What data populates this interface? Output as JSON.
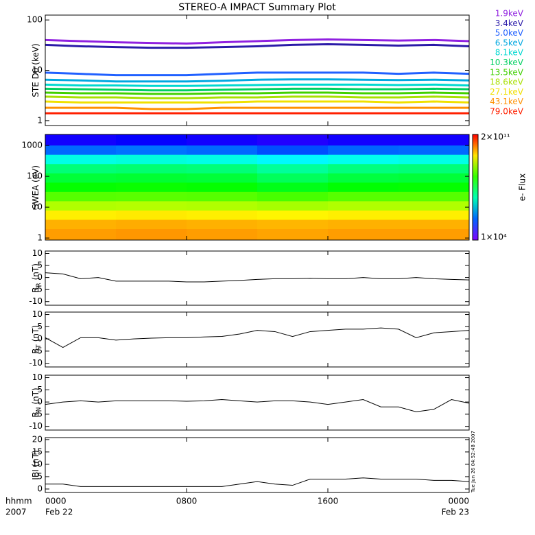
{
  "title": "STEREO-A IMPACT Summary Plot",
  "chart_data": [
    {
      "type": "line",
      "log": true,
      "ylabel": "STE D0 (keV)",
      "x": [
        0,
        2,
        4,
        6,
        8,
        10,
        12,
        14,
        16,
        18,
        20,
        22,
        24
      ],
      "xlim": [
        0,
        24
      ],
      "ylim": [
        0.8,
        125
      ],
      "yticks": [
        1,
        10,
        100
      ],
      "series": [
        {
          "name": "1.9keV",
          "color": "#9020e0",
          "values": [
            40,
            38,
            36,
            35,
            34,
            36,
            38,
            40,
            41,
            40,
            39,
            40,
            38
          ]
        },
        {
          "name": "3.4keV",
          "color": "#2a1aa8",
          "values": [
            32,
            30,
            29,
            28,
            28,
            29,
            30,
            32,
            33,
            32,
            31,
            32,
            30
          ]
        },
        {
          "name": "5.0keV",
          "color": "#2060ff",
          "values": [
            9,
            8.5,
            8,
            8,
            8,
            8.5,
            9,
            9,
            9,
            9,
            8.5,
            9,
            8.5
          ]
        },
        {
          "name": "6.5keV",
          "color": "#00a8e0",
          "values": [
            6.5,
            6.3,
            6,
            6,
            6,
            6.2,
            6.5,
            6.6,
            6.6,
            6.5,
            6.4,
            6.5,
            6.3
          ]
        },
        {
          "name": "8.1keV",
          "color": "#00d8d0",
          "values": [
            5.2,
            5,
            5,
            4.9,
            4.9,
            5,
            5.1,
            5.2,
            5.2,
            5.2,
            5.1,
            5.2,
            5
          ]
        },
        {
          "name": "10.3keV",
          "color": "#00d060",
          "values": [
            4.3,
            4.2,
            4.1,
            4,
            4,
            4.1,
            4.2,
            4.3,
            4.3,
            4.2,
            4.2,
            4.3,
            4.2
          ]
        },
        {
          "name": "13.5keV",
          "color": "#40d000",
          "values": [
            3.6,
            3.5,
            3.5,
            3.4,
            3.4,
            3.5,
            3.5,
            3.6,
            3.6,
            3.5,
            3.5,
            3.6,
            3.5
          ]
        },
        {
          "name": "18.6keV",
          "color": "#a8e000",
          "values": [
            3,
            2.9,
            2.9,
            2.8,
            2.8,
            2.9,
            2.9,
            3,
            3,
            2.9,
            2.9,
            3,
            2.9
          ]
        },
        {
          "name": "27.1keV",
          "color": "#f0e000",
          "values": [
            2.4,
            2.3,
            2.3,
            2.3,
            2.3,
            2.3,
            2.4,
            2.4,
            2.4,
            2.4,
            2.3,
            2.4,
            2.3
          ]
        },
        {
          "name": "43.1keV",
          "color": "#ff9000",
          "values": [
            1.8,
            1.8,
            1.8,
            1.7,
            1.7,
            1.8,
            1.8,
            1.8,
            1.8,
            1.8,
            1.8,
            1.8,
            1.8
          ]
        },
        {
          "name": "79.0keV",
          "color": "#ff2000",
          "values": [
            1.4,
            1.4,
            1.4,
            1.4,
            1.4,
            1.4,
            1.4,
            1.4,
            1.4,
            1.4,
            1.4,
            1.4,
            1.4
          ]
        }
      ]
    },
    {
      "type": "heatmap",
      "log": true,
      "ylabel": "SWEA (eV)",
      "x_edges": [
        0,
        4,
        8,
        12,
        16,
        20,
        24
      ],
      "xlim": [
        0,
        24
      ],
      "y_edges": [
        0.86,
        2,
        4,
        8,
        16,
        32,
        64,
        128,
        256,
        512,
        1024,
        2280
      ],
      "ylim": [
        0.86,
        2280
      ],
      "yticks": [
        1,
        10,
        100,
        1000
      ],
      "z": [
        [
          20000000000.0,
          22000000000.0,
          20000000000.0,
          18000000000.0,
          20000000000.0,
          20000000000.0
        ],
        [
          15000000000.0,
          16000000000.0,
          15000000000.0,
          14000000000.0,
          15000000000.0,
          15000000000.0
        ],
        [
          6000000000.0,
          6500000000.0,
          6000000000.0,
          5500000000.0,
          6000000000.0,
          6000000000.0
        ],
        [
          1500000000.0,
          1600000000.0,
          1500000000.0,
          1300000000.0,
          1500000000.0,
          1500000000.0
        ],
        [
          400000000.0,
          420000000.0,
          400000000.0,
          320000000.0,
          400000000.0,
          400000000.0
        ],
        [
          120000000.0,
          130000000.0,
          120000000.0,
          80000000.0,
          110000000.0,
          120000000.0
        ],
        [
          50000000.0,
          55000000.0,
          50000000.0,
          30000000.0,
          45000000.0,
          50000000.0
        ],
        [
          20000000.0,
          22000000.0,
          20000000.0,
          12000000.0,
          18000000.0,
          20000000.0
        ],
        [
          4000000.0,
          4500000.0,
          4000000.0,
          2500000.0,
          3500000.0,
          4000000.0
        ],
        [
          300000.0,
          350000.0,
          300000.0,
          200000.0,
          280000.0,
          300000.0
        ],
        [
          50000.0,
          60000.0,
          50000.0,
          40000.0,
          50000.0,
          50000.0
        ]
      ],
      "clim": [
        10000.0,
        200000000000.0
      ],
      "clabel": "e- Flux",
      "cticks": [
        {
          "value": 200000000000.0,
          "label": "2×10¹¹"
        },
        {
          "value": 10000.0,
          "label": "1×10⁴"
        }
      ]
    },
    {
      "type": "line",
      "ylabel": "B",
      "ylabel_sub": "R",
      "ylabel_unit": "(nT)",
      "x": [
        0,
        1,
        2,
        3,
        4,
        5,
        6,
        7,
        8,
        9,
        10,
        11,
        12,
        13,
        14,
        15,
        16,
        17,
        18,
        19,
        20,
        21,
        22,
        23,
        24
      ],
      "xlim": [
        0,
        24
      ],
      "ylim": [
        -11.5,
        11
      ],
      "yticks": [
        -10,
        -5,
        0,
        5,
        10
      ],
      "series": [
        {
          "color": "#000000",
          "values": [
            2,
            1.5,
            -0.5,
            0,
            -1.5,
            -1.5,
            -1.5,
            -1.5,
            -1.8,
            -1.8,
            -1.5,
            -1.2,
            -0.8,
            -0.5,
            -0.5,
            -0.3,
            -0.5,
            -0.5,
            0,
            -0.5,
            -0.5,
            0,
            -0.5,
            -0.8,
            -1
          ]
        }
      ]
    },
    {
      "type": "line",
      "ylabel": "B",
      "ylabel_sub": "T",
      "ylabel_unit": "(nT)",
      "x": [
        0,
        1,
        2,
        3,
        4,
        5,
        6,
        7,
        8,
        9,
        10,
        11,
        12,
        13,
        14,
        15,
        16,
        17,
        18,
        19,
        20,
        21,
        22,
        23,
        24
      ],
      "xlim": [
        0,
        24
      ],
      "ylim": [
        -11.5,
        11
      ],
      "yticks": [
        -10,
        -5,
        0,
        5,
        10
      ],
      "series": [
        {
          "color": "#000000",
          "values": [
            0.5,
            -3.5,
            0.5,
            0.5,
            -0.5,
            0,
            0.3,
            0.5,
            0.5,
            0.8,
            1,
            2,
            3.5,
            3,
            1,
            3,
            3.5,
            4,
            4,
            4.5,
            4,
            0.5,
            2.5,
            3,
            3.5
          ]
        }
      ]
    },
    {
      "type": "line",
      "ylabel": "B",
      "ylabel_sub": "N",
      "ylabel_unit": "(nT)",
      "x": [
        0,
        1,
        2,
        3,
        4,
        5,
        6,
        7,
        8,
        9,
        10,
        11,
        12,
        13,
        14,
        15,
        16,
        17,
        18,
        19,
        20,
        21,
        22,
        23,
        24
      ],
      "xlim": [
        0,
        24
      ],
      "ylim": [
        -11.5,
        11
      ],
      "yticks": [
        -10,
        -5,
        0,
        5,
        10
      ],
      "series": [
        {
          "color": "#000000",
          "values": [
            -1,
            0,
            0.5,
            0,
            0.5,
            0.5,
            0.5,
            0.5,
            0.3,
            0.5,
            1,
            0.5,
            0,
            0.5,
            0.5,
            0,
            -1,
            0,
            1,
            -2,
            -2,
            -4,
            -3,
            1,
            -0.5
          ]
        }
      ]
    },
    {
      "type": "line",
      "ylabel": "IBI (nT)",
      "x": [
        0,
        1,
        2,
        3,
        4,
        5,
        6,
        7,
        8,
        9,
        10,
        11,
        12,
        13,
        14,
        15,
        16,
        17,
        18,
        19,
        20,
        21,
        22,
        23,
        24
      ],
      "xlim": [
        0,
        24
      ],
      "ylim": [
        -1.4,
        20.8
      ],
      "yticks": [
        0,
        5,
        10,
        15,
        20
      ],
      "series": [
        {
          "color": "#000000",
          "values": [
            2,
            2,
            1,
            1,
            1,
            1,
            1,
            1,
            1,
            1,
            1,
            2,
            3,
            2,
            1.5,
            4,
            4,
            4,
            4.5,
            4,
            4,
            4,
            3.5,
            3.5,
            3
          ]
        }
      ],
      "xticks": [
        {
          "value": 0,
          "label": "0000"
        },
        {
          "value": 8,
          "label": "0800"
        },
        {
          "value": 16,
          "label": "1600"
        },
        {
          "value": 24,
          "label": "0000"
        }
      ],
      "x_date_labels": [
        {
          "value": 0,
          "label": "Feb 22"
        },
        {
          "value": 24,
          "label": "Feb 23"
        }
      ],
      "x_axis_title": [
        "hhmm",
        "2007"
      ],
      "timestamp": "Tue Jun 26 04:52:48 2007"
    }
  ]
}
